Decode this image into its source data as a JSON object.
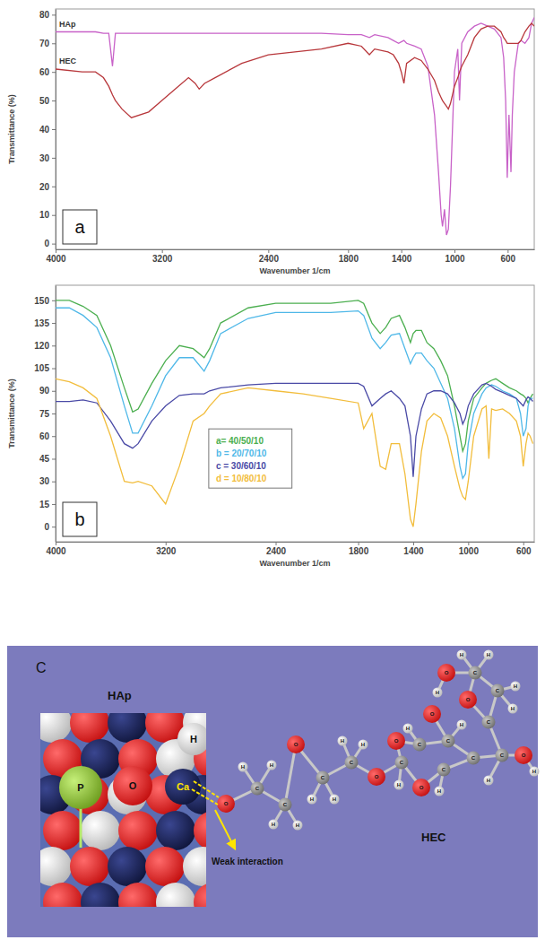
{
  "chart_data": [
    {
      "type": "line",
      "x_label": "Wavenumber 1/cm",
      "y_label": "Transmittance (%)",
      "annotations": [
        "a"
      ],
      "x": [
        4000,
        3800,
        3700,
        3640,
        3600,
        3572,
        3550,
        3500,
        3430,
        3300,
        3200,
        3100,
        3000,
        2950,
        2920,
        2880,
        2800,
        2600,
        2400,
        2200,
        2000,
        1800,
        1700,
        1640,
        1600,
        1500,
        1460,
        1420,
        1400,
        1380,
        1360,
        1300,
        1250,
        1200,
        1150,
        1120,
        1100,
        1090,
        1075,
        1060,
        1046,
        1030,
        1000,
        975,
        962,
        945,
        900,
        850,
        800,
        750,
        700,
        650,
        630,
        615,
        603,
        590,
        575,
        565,
        550,
        520,
        500,
        470,
        440,
        420,
        400
      ],
      "xlim": [
        4000,
        400
      ],
      "xticks": [
        4000,
        3200,
        2400,
        1800,
        1400,
        1000,
        600
      ],
      "ylim": [
        -2,
        82
      ],
      "yticks": [
        0,
        10,
        20,
        30,
        40,
        50,
        60,
        70,
        80
      ],
      "series": [
        {
          "name": "HAp",
          "color": "#c862c8",
          "values": [
            74,
            74,
            74,
            73.5,
            73.5,
            62,
            73.5,
            73.5,
            73.5,
            73.5,
            73.5,
            73.5,
            73.5,
            73.5,
            73.5,
            73.5,
            73.5,
            73.5,
            73.5,
            73.5,
            73.5,
            73,
            73,
            72,
            73,
            72,
            71,
            70,
            70.5,
            71,
            70,
            69,
            68,
            62,
            45,
            25,
            10,
            6,
            12,
            3,
            5,
            20,
            60,
            68,
            50,
            70,
            74,
            76,
            77,
            76,
            75,
            72,
            65,
            50,
            23,
            45,
            25,
            45,
            60,
            70,
            71,
            70,
            72,
            77,
            79
          ]
        },
        {
          "name": "HEC",
          "color": "#b8383c",
          "values": [
            61,
            60,
            60,
            58,
            55,
            52,
            50,
            47,
            44,
            46,
            50,
            54,
            58,
            56,
            54,
            56,
            58,
            63,
            66,
            67,
            68,
            70,
            69,
            66,
            68,
            67,
            66,
            63,
            60,
            56,
            63,
            65,
            64,
            61,
            57,
            53,
            51,
            50,
            49,
            48,
            47,
            49,
            55,
            58,
            60,
            62,
            66,
            72,
            75,
            76,
            76,
            74,
            72,
            71,
            70,
            70,
            70,
            70,
            70,
            70,
            71,
            74,
            76,
            77,
            76
          ]
        }
      ]
    },
    {
      "type": "line",
      "x_label": "Wavenumber 1/cm",
      "y_label": "Transmittance (%)",
      "annotations": [
        "b"
      ],
      "legend": "center",
      "x": [
        4000,
        3900,
        3800,
        3700,
        3600,
        3500,
        3440,
        3400,
        3300,
        3200,
        3100,
        3000,
        2920,
        2880,
        2800,
        2600,
        2400,
        2200,
        2000,
        1800,
        1760,
        1700,
        1640,
        1600,
        1560,
        1500,
        1460,
        1420,
        1400,
        1380,
        1340,
        1300,
        1250,
        1200,
        1150,
        1100,
        1060,
        1040,
        1020,
        1000,
        960,
        900,
        870,
        850,
        830,
        800,
        750,
        700,
        650,
        620,
        600,
        580,
        565,
        550,
        530
      ],
      "xlim": [
        4000,
        520
      ],
      "xticks": [
        4000,
        3200,
        2400,
        1800,
        1400,
        1000,
        600
      ],
      "ylim": [
        -10,
        160
      ],
      "yticks": [
        0,
        15,
        30,
        45,
        60,
        75,
        90,
        105,
        120,
        135,
        150
      ],
      "series": [
        {
          "name": "a= 40/50/10",
          "color": "#4caf50",
          "values": [
            150,
            150,
            146,
            140,
            120,
            92,
            76,
            78,
            95,
            110,
            120,
            118,
            112,
            118,
            135,
            145,
            148,
            148,
            148,
            150,
            148,
            135,
            128,
            132,
            138,
            140,
            132,
            122,
            128,
            130,
            130,
            122,
            118,
            110,
            100,
            80,
            60,
            50,
            55,
            70,
            85,
            92,
            95,
            96,
            97,
            98,
            95,
            92,
            90,
            88,
            87,
            85,
            82,
            85,
            88
          ]
        },
        {
          "name": "b = 20/70/10",
          "color": "#4fb8e8",
          "values": [
            145,
            145,
            140,
            132,
            112,
            80,
            62,
            62,
            80,
            100,
            112,
            112,
            103,
            110,
            128,
            138,
            142,
            142,
            142,
            143,
            140,
            125,
            118,
            122,
            127,
            128,
            118,
            108,
            112,
            115,
            115,
            110,
            105,
            95,
            85,
            65,
            40,
            32,
            35,
            55,
            75,
            88,
            92,
            93,
            94,
            93,
            90,
            88,
            85,
            75,
            60,
            65,
            80,
            85,
            85
          ]
        },
        {
          "name": "c = 30/60/10",
          "color": "#4a4aa6",
          "values": [
            83,
            83,
            84,
            82,
            70,
            55,
            52,
            55,
            70,
            80,
            87,
            88,
            88,
            90,
            92,
            94,
            95,
            95,
            95,
            95,
            93,
            80,
            85,
            88,
            90,
            85,
            80,
            60,
            33,
            60,
            78,
            88,
            90,
            90,
            88,
            82,
            75,
            68,
            72,
            80,
            88,
            94,
            95,
            94,
            93,
            91,
            89,
            87,
            85,
            82,
            80,
            84,
            86,
            85,
            83
          ]
        },
        {
          "name": "d = 10/80/10",
          "color": "#f2bd3c",
          "values": [
            98,
            96,
            92,
            85,
            60,
            30,
            29,
            30,
            27,
            15,
            40,
            70,
            75,
            80,
            88,
            92,
            90,
            88,
            85,
            82,
            65,
            75,
            40,
            38,
            55,
            55,
            35,
            5,
            0,
            15,
            50,
            70,
            75,
            72,
            60,
            40,
            25,
            20,
            18,
            30,
            60,
            78,
            80,
            45,
            78,
            77,
            78,
            75,
            70,
            60,
            40,
            55,
            62,
            60,
            55
          ]
        }
      ]
    }
  ],
  "diagram": {
    "label": "C",
    "annotation": "Weak interaction",
    "hap": {
      "title": "HAp",
      "atoms": [
        "H",
        "P",
        "O",
        "Ca"
      ]
    },
    "hec": {
      "title": "HEC",
      "atoms": [
        "O",
        "C",
        "H",
        "H",
        "C",
        "H",
        "H",
        "O",
        "C",
        "H",
        "H",
        "C",
        "H",
        "H",
        "O",
        "C",
        "H",
        "O",
        "C",
        "H",
        "O",
        "C",
        "H",
        "C",
        "O",
        "H",
        "C",
        "O",
        "C",
        "H",
        "C",
        "O",
        "H",
        "C",
        "O",
        "H",
        "H",
        "H",
        "C",
        "H",
        "H"
      ]
    }
  }
}
